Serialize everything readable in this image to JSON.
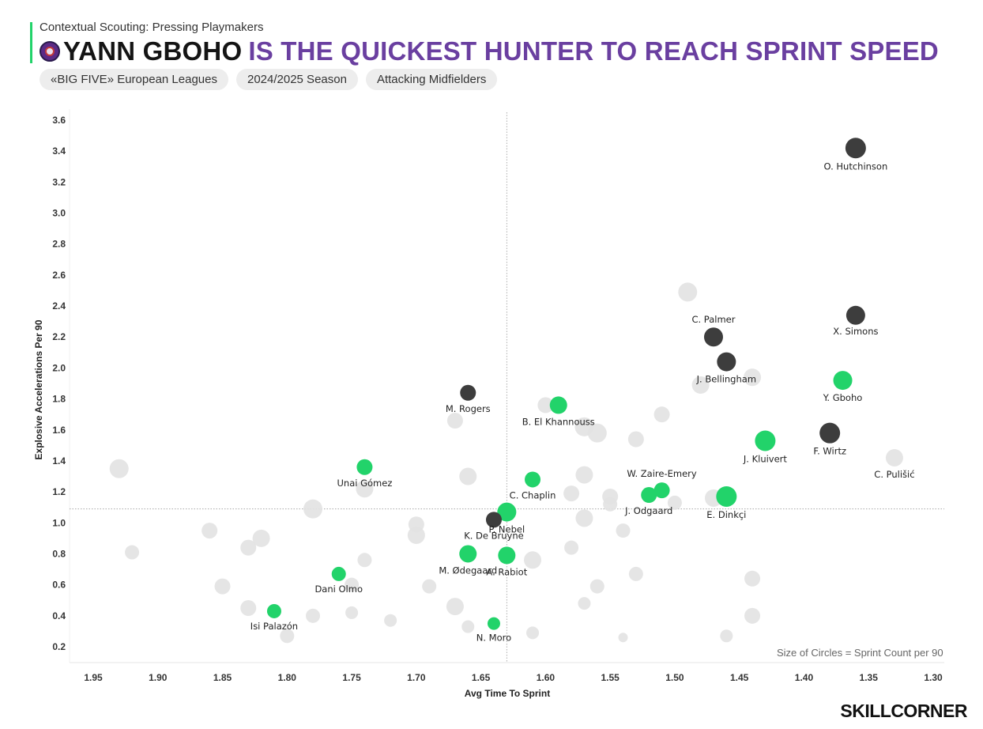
{
  "header": {
    "subtitle": "Contextual Scouting: Pressing Playmakers",
    "title_name": "YANN GBOHO",
    "title_rest": "IS THE QUICKEST HUNTER TO REACH SPRINT SPEED",
    "badge_icon": "club-crest-icon"
  },
  "filters": [
    "«BIG FIVE» European Leagues",
    "2024/2025 Season",
    "Attacking Midfielders"
  ],
  "size_note": "Size of Circles = Sprint Count per 90",
  "brand": "SKILLCORNER",
  "colors": {
    "highlight": "#22d36a",
    "dark": "#3d3d3d",
    "background_points": "#e2e2e2",
    "title_accent": "#6a3fa0"
  },
  "chart_data": {
    "type": "scatter",
    "xlabel": "Avg Time To Sprint",
    "ylabel": "Explosive Accelerations Per 90",
    "x_reversed": true,
    "xlim": [
      1.97,
      1.29
    ],
    "ylim": [
      0.12,
      3.7
    ],
    "x_ticks": [
      "1.95",
      "1.90",
      "1.85",
      "1.80",
      "1.75",
      "1.70",
      "1.65",
      "1.60",
      "1.55",
      "1.50",
      "1.45",
      "1.40",
      "1.35",
      "1.30"
    ],
    "y_ticks": [
      "0.2",
      "0.4",
      "0.6",
      "0.8",
      "1.0",
      "1.2",
      "1.4",
      "1.6",
      "1.8",
      "2.0",
      "2.2",
      "2.4",
      "2.6",
      "2.8",
      "3.0",
      "3.2",
      "3.4",
      "3.6"
    ],
    "reference_lines": {
      "x": 1.63,
      "y": 1.09
    },
    "size_legend": "Size of Circles = Sprint Count per 90",
    "series": [
      {
        "group": "top",
        "points": [
          {
            "name": "O. Hutchinson",
            "x": 1.36,
            "y": 3.42,
            "size": 13
          },
          {
            "name": "X. Simons",
            "x": 1.36,
            "y": 2.34,
            "size": 12
          },
          {
            "name": "C. Palmer",
            "x": 1.47,
            "y": 2.2,
            "size": 12
          },
          {
            "name": "J. Bellingham",
            "x": 1.46,
            "y": 2.04,
            "size": 12
          },
          {
            "name": "F. Wirtz",
            "x": 1.38,
            "y": 1.58,
            "size": 13
          },
          {
            "name": "M. Rogers",
            "x": 1.66,
            "y": 1.84,
            "size": 10
          },
          {
            "name": "K. De Bruyne",
            "x": 1.64,
            "y": 1.02,
            "size": 10
          }
        ]
      },
      {
        "group": "highlight",
        "points": [
          {
            "name": "Y. Gboho",
            "x": 1.37,
            "y": 1.92,
            "size": 12
          },
          {
            "name": "J. Kluivert",
            "x": 1.43,
            "y": 1.53,
            "size": 13
          },
          {
            "name": "E. Dinkçi",
            "x": 1.46,
            "y": 1.17,
            "size": 13
          },
          {
            "name": "W. Zaire-Emery",
            "x": 1.51,
            "y": 1.21,
            "size": 10
          },
          {
            "name": "J. Odgaard",
            "x": 1.52,
            "y": 1.18,
            "size": 10
          },
          {
            "name": "B. El Khannouss",
            "x": 1.59,
            "y": 1.76,
            "size": 11
          },
          {
            "name": "C. Chaplin",
            "x": 1.61,
            "y": 1.28,
            "size": 10
          },
          {
            "name": "P. Nebel",
            "x": 1.63,
            "y": 1.07,
            "size": 12
          },
          {
            "name": "Unai Gómez",
            "x": 1.74,
            "y": 1.36,
            "size": 10
          },
          {
            "name": "M. Ødegaard",
            "x": 1.66,
            "y": 0.8,
            "size": 11
          },
          {
            "name": "A. Rabiot",
            "x": 1.63,
            "y": 0.79,
            "size": 11
          },
          {
            "name": "Dani Olmo",
            "x": 1.76,
            "y": 0.67,
            "size": 9
          },
          {
            "name": "Isi Palazón",
            "x": 1.81,
            "y": 0.43,
            "size": 9
          },
          {
            "name": "N. Moro",
            "x": 1.64,
            "y": 0.35,
            "size": 8
          }
        ]
      },
      {
        "group": "other",
        "label_points": [
          {
            "name": "C. Pulišić",
            "x": 1.33,
            "y": 1.42,
            "size": 11
          }
        ],
        "points": [
          {
            "x": 1.93,
            "y": 1.35,
            "size": 12
          },
          {
            "x": 1.92,
            "y": 0.81,
            "size": 9
          },
          {
            "x": 1.86,
            "y": 0.95,
            "size": 10
          },
          {
            "x": 1.85,
            "y": 0.59,
            "size": 10
          },
          {
            "x": 1.83,
            "y": 0.84,
            "size": 10
          },
          {
            "x": 1.82,
            "y": 0.9,
            "size": 11
          },
          {
            "x": 1.83,
            "y": 0.45,
            "size": 10
          },
          {
            "x": 1.8,
            "y": 0.27,
            "size": 9
          },
          {
            "x": 1.78,
            "y": 1.09,
            "size": 12
          },
          {
            "x": 1.78,
            "y": 0.4,
            "size": 9
          },
          {
            "x": 1.75,
            "y": 0.42,
            "size": 8
          },
          {
            "x": 1.74,
            "y": 0.76,
            "size": 9
          },
          {
            "x": 1.74,
            "y": 1.22,
            "size": 11
          },
          {
            "x": 1.75,
            "y": 0.6,
            "size": 9
          },
          {
            "x": 1.72,
            "y": 0.37,
            "size": 8
          },
          {
            "x": 1.7,
            "y": 0.92,
            "size": 11
          },
          {
            "x": 1.7,
            "y": 0.99,
            "size": 10
          },
          {
            "x": 1.69,
            "y": 0.59,
            "size": 9
          },
          {
            "x": 1.67,
            "y": 1.66,
            "size": 10
          },
          {
            "x": 1.67,
            "y": 0.46,
            "size": 11
          },
          {
            "x": 1.66,
            "y": 1.3,
            "size": 11
          },
          {
            "x": 1.66,
            "y": 0.33,
            "size": 8
          },
          {
            "x": 1.61,
            "y": 0.76,
            "size": 11
          },
          {
            "x": 1.61,
            "y": 0.29,
            "size": 8
          },
          {
            "x": 1.6,
            "y": 1.76,
            "size": 10
          },
          {
            "x": 1.58,
            "y": 1.19,
            "size": 10
          },
          {
            "x": 1.58,
            "y": 0.84,
            "size": 9
          },
          {
            "x": 1.57,
            "y": 1.62,
            "size": 12
          },
          {
            "x": 1.57,
            "y": 1.31,
            "size": 11
          },
          {
            "x": 1.57,
            "y": 1.03,
            "size": 11
          },
          {
            "x": 1.57,
            "y": 0.48,
            "size": 8
          },
          {
            "x": 1.56,
            "y": 1.58,
            "size": 12
          },
          {
            "x": 1.56,
            "y": 0.59,
            "size": 9
          },
          {
            "x": 1.55,
            "y": 1.17,
            "size": 10
          },
          {
            "x": 1.55,
            "y": 1.12,
            "size": 9
          },
          {
            "x": 1.54,
            "y": 0.95,
            "size": 9
          },
          {
            "x": 1.54,
            "y": 0.26,
            "size": 6
          },
          {
            "x": 1.53,
            "y": 1.54,
            "size": 10
          },
          {
            "x": 1.53,
            "y": 0.67,
            "size": 9
          },
          {
            "x": 1.51,
            "y": 1.7,
            "size": 10
          },
          {
            "x": 1.5,
            "y": 1.13,
            "size": 9
          },
          {
            "x": 1.49,
            "y": 2.49,
            "size": 12
          },
          {
            "x": 1.48,
            "y": 1.89,
            "size": 11
          },
          {
            "x": 1.47,
            "y": 1.16,
            "size": 11
          },
          {
            "x": 1.44,
            "y": 1.94,
            "size": 11
          },
          {
            "x": 1.44,
            "y": 0.64,
            "size": 10
          },
          {
            "x": 1.44,
            "y": 0.4,
            "size": 10
          },
          {
            "x": 1.46,
            "y": 0.27,
            "size": 8
          }
        ]
      }
    ]
  }
}
